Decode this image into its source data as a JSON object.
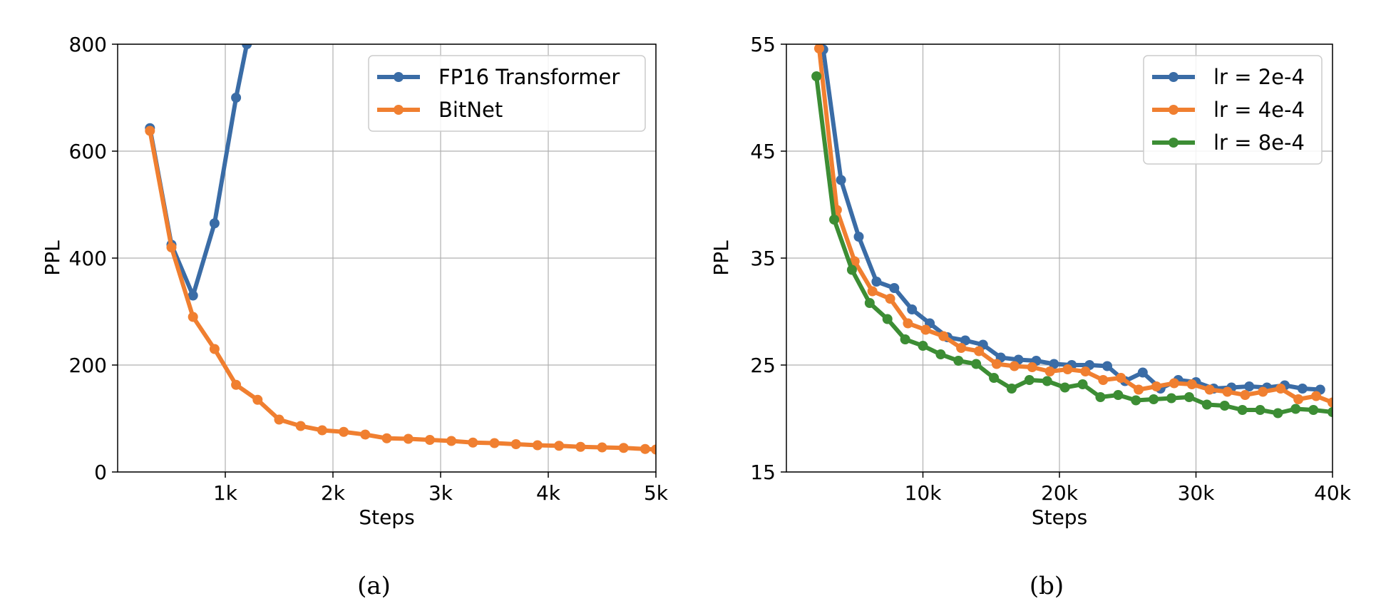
{
  "chart_data": [
    {
      "type": "line",
      "caption": "(a)",
      "xlabel": "Steps",
      "ylabel": "PPL",
      "xlim": [
        0,
        5000
      ],
      "ylim": [
        0,
        800
      ],
      "xticks": [
        1000,
        2000,
        3000,
        4000,
        5000
      ],
      "xtick_labels": [
        "1k",
        "2k",
        "3k",
        "4k",
        "5k"
      ],
      "yticks": [
        0,
        200,
        400,
        600,
        800
      ],
      "ytick_labels": [
        "0",
        "200",
        "400",
        "600",
        "800"
      ],
      "grid": true,
      "legend_position": "top-right",
      "series": [
        {
          "name": "FP16 Transformer",
          "color": "#3a6ca6",
          "x": [
            300,
            500,
            700,
            900,
            1100,
            1200
          ],
          "y": [
            643,
            425,
            330,
            465,
            700,
            800
          ]
        },
        {
          "name": "BitNet",
          "color": "#f07f30",
          "x": [
            300,
            500,
            700,
            900,
            1100,
            1300,
            1500,
            1700,
            1900,
            2100,
            2300,
            2500,
            2700,
            2900,
            3100,
            3300,
            3500,
            3700,
            3900,
            4100,
            4300,
            4500,
            4700,
            4900,
            5000
          ],
          "y": [
            638,
            420,
            290,
            230,
            163,
            135,
            98,
            86,
            78,
            75,
            70,
            63,
            62,
            60,
            58,
            55,
            54,
            52,
            50,
            49,
            47,
            46,
            45,
            43,
            42
          ]
        }
      ]
    },
    {
      "type": "line",
      "caption": "(b)",
      "xlabel": "Steps",
      "ylabel": "PPL",
      "xlim": [
        0,
        40000
      ],
      "ylim": [
        15,
        55
      ],
      "xticks": [
        10000,
        20000,
        30000,
        40000
      ],
      "xtick_labels": [
        "10k",
        "20k",
        "30k",
        "40k"
      ],
      "yticks": [
        15,
        25,
        35,
        45,
        55
      ],
      "ytick_labels": [
        "15",
        "25",
        "35",
        "45",
        "55"
      ],
      "grid": true,
      "legend_position": "top-right",
      "series": [
        {
          "name": "lr = 2e-4",
          "color": "#3a6ca6",
          "x": [
            2700,
            4000,
            5300,
            6600,
            7900,
            9200,
            10500,
            11800,
            13100,
            14400,
            15700,
            17000,
            18300,
            19600,
            20900,
            22200,
            23500,
            24800,
            26100,
            27400,
            28700,
            30000,
            31300,
            32600,
            33900,
            35200,
            36500,
            37800,
            39100
          ],
          "y": [
            54.5,
            42.3,
            37.0,
            32.8,
            32.2,
            30.2,
            28.9,
            27.6,
            27.3,
            26.9,
            25.7,
            25.5,
            25.4,
            25.1,
            25.0,
            25.0,
            24.9,
            23.5,
            24.3,
            22.8,
            23.6,
            23.4,
            22.8,
            22.9,
            23.0,
            22.9,
            23.1,
            22.8,
            22.7
          ]
        },
        {
          "name": "lr = 4e-4",
          "color": "#f07f30",
          "x": [
            2400,
            3700,
            5000,
            6300,
            7600,
            8900,
            10200,
            11500,
            12800,
            14100,
            15400,
            16700,
            18000,
            19300,
            20600,
            21900,
            23200,
            24500,
            25800,
            27100,
            28400,
            29700,
            31000,
            32300,
            33600,
            34900,
            36200,
            37500,
            38800,
            40000
          ],
          "y": [
            54.6,
            39.5,
            34.7,
            31.9,
            31.2,
            28.9,
            28.3,
            27.7,
            26.6,
            26.3,
            25.1,
            24.9,
            24.8,
            24.4,
            24.6,
            24.4,
            23.6,
            23.8,
            22.7,
            23.0,
            23.3,
            23.2,
            22.7,
            22.5,
            22.2,
            22.5,
            22.8,
            21.8,
            22.1,
            21.5
          ]
        },
        {
          "name": "lr = 8e-4",
          "color": "#3c8d34",
          "x": [
            2200,
            3500,
            4800,
            6100,
            7400,
            8700,
            10000,
            11300,
            12600,
            13900,
            15200,
            16500,
            17800,
            19100,
            20400,
            21700,
            23000,
            24300,
            25600,
            26900,
            28200,
            29500,
            30800,
            32100,
            33400,
            34700,
            36000,
            37300,
            38600,
            40000
          ],
          "y": [
            52.0,
            38.6,
            33.9,
            30.8,
            29.3,
            27.4,
            26.8,
            26.0,
            25.4,
            25.1,
            23.8,
            22.8,
            23.6,
            23.5,
            22.9,
            23.2,
            22.0,
            22.2,
            21.7,
            21.8,
            21.9,
            22.0,
            21.3,
            21.2,
            20.8,
            20.8,
            20.5,
            20.9,
            20.8,
            20.6
          ]
        }
      ]
    }
  ]
}
